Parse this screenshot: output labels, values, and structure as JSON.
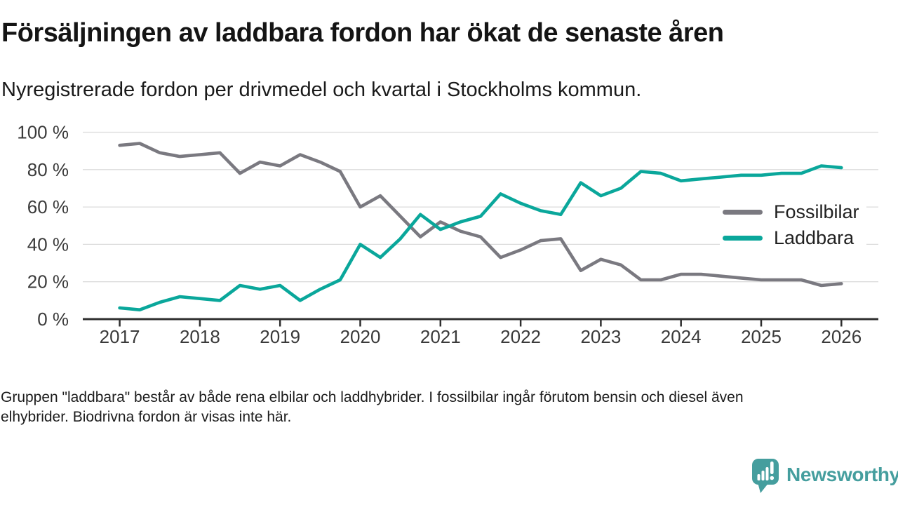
{
  "header": {
    "title": "Försäljningen av laddbara fordon har ökat de senaste åren",
    "subtitle": "Nyregistrerade fordon per drivmedel och kvartal i Stockholms kommun."
  },
  "chart_data": {
    "type": "line",
    "title": "Försäljningen av laddbara fordon har ökat de senaste åren",
    "subtitle": "Nyregistrerade fordon per drivmedel och kvartal i Stockholms kommun.",
    "x_unit": "quarter",
    "x_start": "2017 Q1",
    "x_end": "2026 Q1",
    "x_tick_labels": [
      "2017",
      "2018",
      "2019",
      "2020",
      "2021",
      "2022",
      "2023",
      "2024",
      "2025",
      "2026"
    ],
    "y_tick_values": [
      0,
      20,
      40,
      60,
      80,
      100
    ],
    "y_tick_labels": [
      "0 %",
      "20 %",
      "40 %",
      "60 %",
      "80 %",
      "100 %"
    ],
    "ylim": [
      0,
      100
    ],
    "grid": true,
    "legend_position": "right-inside",
    "series": [
      {
        "name": "Fossilbilar",
        "color": "#7a7980",
        "values": [
          93,
          94,
          89,
          87,
          88,
          89,
          78,
          84,
          82,
          88,
          84,
          79,
          60,
          66,
          55,
          44,
          52,
          47,
          44,
          33,
          37,
          42,
          43,
          26,
          32,
          29,
          21,
          21,
          24,
          24,
          23,
          22,
          21,
          21,
          21,
          18,
          19
        ]
      },
      {
        "name": "Laddbara",
        "color": "#0aa79b",
        "values": [
          6,
          5,
          9,
          12,
          11,
          10,
          18,
          16,
          18,
          10,
          16,
          21,
          40,
          33,
          43,
          56,
          48,
          52,
          55,
          67,
          62,
          58,
          56,
          73,
          66,
          70,
          79,
          78,
          74,
          75,
          76,
          77,
          77,
          78,
          78,
          82,
          81
        ]
      }
    ]
  },
  "footer": {
    "note_lines": [
      "Gruppen \"laddbara\" består av både rena elbilar och laddhybrider. I fossilbilar ingår förutom bensin och diesel även",
      "elhybrider. Biodrivna fordon är visas inte här."
    ]
  },
  "branding": {
    "logo_text": "Newsworthy",
    "logo_color": "#459e9e"
  },
  "style": {
    "grid_color": "#dcdcdc",
    "axis_color": "#2f2f2f",
    "tick_label_color": "#3a3a3a"
  }
}
